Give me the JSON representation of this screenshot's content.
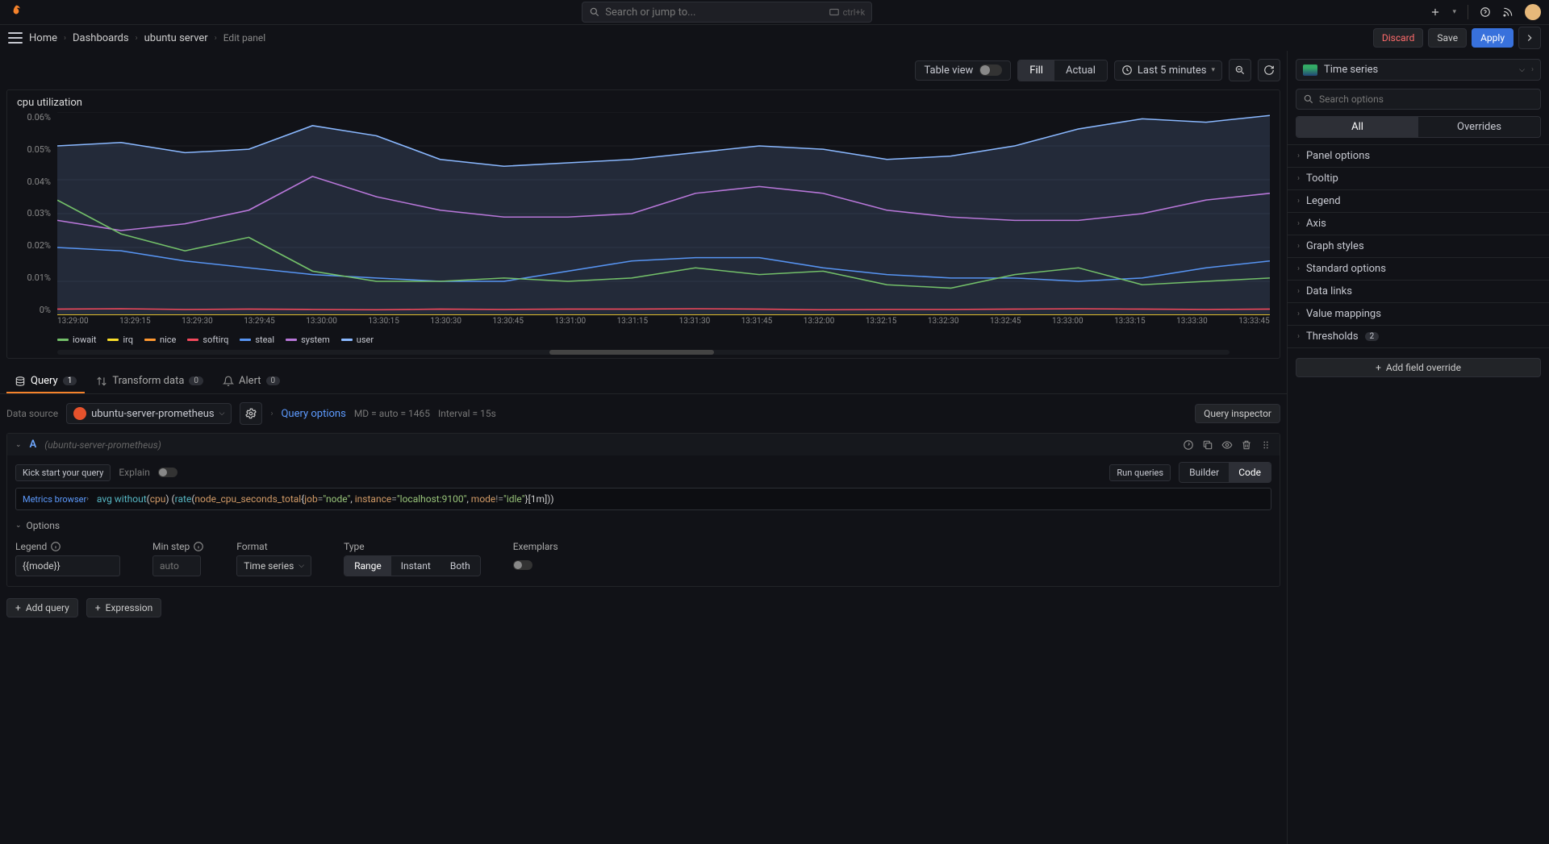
{
  "topbar": {
    "search_placeholder": "Search or jump to...",
    "kbd_hint": "ctrl+k"
  },
  "breadcrumbs": {
    "items": [
      "Home",
      "Dashboards",
      "ubuntu server",
      "Edit panel"
    ],
    "discard": "Discard",
    "save": "Save",
    "apply": "Apply"
  },
  "toolbar": {
    "table_view": "Table view",
    "fill": "Fill",
    "actual": "Actual",
    "time_range": "Last 5 minutes"
  },
  "panel": {
    "title": "cpu utilization"
  },
  "chart": {
    "type": "line-area",
    "background_color": "#111217",
    "grid_color": "#1e2026",
    "ylim": [
      0,
      0.0006
    ],
    "yticks": [
      "0.06%",
      "0.05%",
      "0.04%",
      "0.03%",
      "0.02%",
      "0.01%",
      "0%"
    ],
    "xticks": [
      "13:29:00",
      "13:29:15",
      "13:29:30",
      "13:29:45",
      "13:30:00",
      "13:30:15",
      "13:30:30",
      "13:30:45",
      "13:31:00",
      "13:31:15",
      "13:31:30",
      "13:31:45",
      "13:32:00",
      "13:32:15",
      "13:32:30",
      "13:32:45",
      "13:33:00",
      "13:33:15",
      "13:33:30",
      "13:33:45"
    ],
    "series": [
      {
        "name": "iowait",
        "color": "#73bf69",
        "points": [
          0.034,
          0.024,
          0.019,
          0.023,
          0.013,
          0.01,
          0.01,
          0.011,
          0.01,
          0.011,
          0.014,
          0.012,
          0.013,
          0.009,
          0.008,
          0.012,
          0.014,
          0.009,
          0.01,
          0.011
        ]
      },
      {
        "name": "irq",
        "color": "#fade2a",
        "points": [
          0,
          0,
          0,
          0,
          0,
          0,
          0,
          0,
          0,
          0,
          0,
          0,
          0,
          0,
          0,
          0,
          0,
          0,
          0,
          0
        ]
      },
      {
        "name": "nice",
        "color": "#ff9830",
        "points": [
          0,
          0,
          0,
          0,
          0,
          0,
          0,
          0,
          0,
          0,
          0,
          0,
          0,
          0,
          0,
          0,
          0,
          0,
          0,
          0
        ]
      },
      {
        "name": "softirq",
        "color": "#f2495c",
        "points": [
          0.0018,
          0.0019,
          0.0017,
          0.0018,
          0.0017,
          0.0016,
          0.0018,
          0.0017,
          0.0018,
          0.0018,
          0.0019,
          0.0018,
          0.0016,
          0.0017,
          0.0017,
          0.0018,
          0.0019,
          0.0018,
          0.0017,
          0.0018
        ]
      },
      {
        "name": "steal",
        "color": "#5794f2",
        "points": [
          0.02,
          0.019,
          0.016,
          0.014,
          0.012,
          0.011,
          0.01,
          0.01,
          0.013,
          0.016,
          0.017,
          0.017,
          0.014,
          0.012,
          0.011,
          0.011,
          0.01,
          0.011,
          0.014,
          0.016
        ]
      },
      {
        "name": "system",
        "color": "#b877d9",
        "points": [
          0.028,
          0.025,
          0.027,
          0.031,
          0.041,
          0.035,
          0.031,
          0.029,
          0.029,
          0.03,
          0.036,
          0.038,
          0.036,
          0.031,
          0.029,
          0.028,
          0.028,
          0.03,
          0.034,
          0.036
        ]
      },
      {
        "name": "user",
        "color": "#8ab8ff",
        "points": [
          0.05,
          0.051,
          0.048,
          0.049,
          0.056,
          0.053,
          0.046,
          0.044,
          0.045,
          0.046,
          0.048,
          0.05,
          0.049,
          0.046,
          0.047,
          0.05,
          0.055,
          0.058,
          0.057,
          0.059
        ],
        "fill": true
      }
    ],
    "scroll_thumb": {
      "left_pct": 42,
      "width_pct": 14
    }
  },
  "legend": [
    "iowait",
    "irq",
    "nice",
    "softirq",
    "steal",
    "system",
    "user"
  ],
  "tabs": {
    "query": {
      "label": "Query",
      "count": "1"
    },
    "transform": {
      "label": "Transform data",
      "count": "0"
    },
    "alert": {
      "label": "Alert",
      "count": "0"
    }
  },
  "datasource": {
    "label": "Data source",
    "name": "ubuntu-server-prometheus",
    "query_options": "Query options",
    "md": "MD = auto = 1465",
    "interval": "Interval = 15s",
    "inspector": "Query inspector"
  },
  "query_row": {
    "letter": "A",
    "src": "(ubuntu-server-prometheus)",
    "kick_start": "Kick start your query",
    "explain": "Explain",
    "run_queries": "Run queries",
    "builder": "Builder",
    "code": "Code",
    "metrics_browser": "Metrics browser",
    "expr_parts": {
      "p1": "avg ",
      "p2": "without",
      "p3": "(",
      "p4": "cpu",
      "p5": ") (",
      "p6": "rate",
      "p7": "(",
      "p8": "node_cpu_seconds_total",
      "p9": "{",
      "p10": "job",
      "p11": "=",
      "p12": "\"node\"",
      "p13": ", ",
      "p14": "instance",
      "p15": "=",
      "p16": "\"localhost:9100\"",
      "p17": ", ",
      "p18": "mode",
      "p19": "!=",
      "p20": "\"idle\"",
      "p21": "}[1m]))"
    }
  },
  "options": {
    "header": "Options",
    "legend_label": "Legend",
    "legend_value": "{{mode}}",
    "minstep_label": "Min step",
    "minstep_placeholder": "auto",
    "format_label": "Format",
    "format_value": "Time series",
    "type_label": "Type",
    "type_range": "Range",
    "type_instant": "Instant",
    "type_both": "Both",
    "exemplars_label": "Exemplars"
  },
  "add": {
    "query": "Add query",
    "expression": "Expression"
  },
  "right": {
    "viz_name": "Time series",
    "search_placeholder": "Search options",
    "tab_all": "All",
    "tab_overrides": "Overrides",
    "sections": [
      "Panel options",
      "Tooltip",
      "Legend",
      "Axis",
      "Graph styles",
      "Standard options",
      "Data links",
      "Value mappings"
    ],
    "thresholds": "Thresholds",
    "thresholds_count": "2",
    "add_override": "Add field override"
  }
}
